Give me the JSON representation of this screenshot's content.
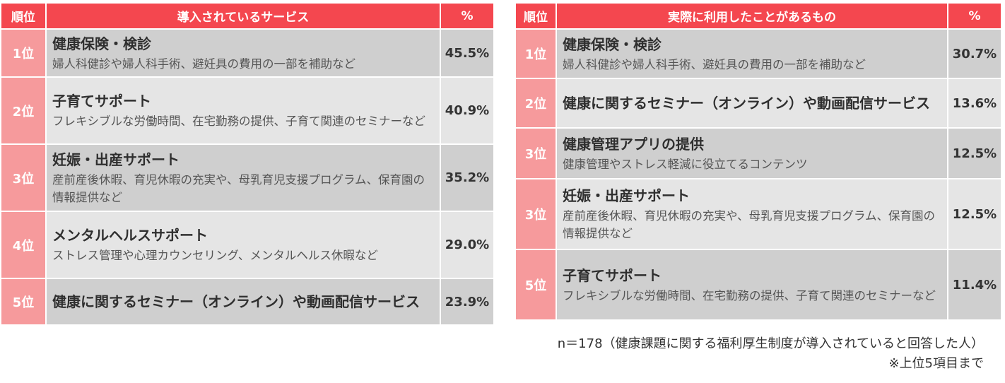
{
  "left_table": {
    "headers": {
      "rank": "順位",
      "item": "導入されているサービス",
      "pct": "%"
    },
    "rows": [
      {
        "rank": "1位",
        "title": "健康保険・検診",
        "desc": "婦人科健診や婦人科手術、避妊具の費用の一部を補助など",
        "pct": "45.5%"
      },
      {
        "rank": "2位",
        "title": "子育てサポート",
        "desc": "フレキシブルな労働時間、在宅勤務の提供、子育て関連のセミナーなど",
        "pct": "40.9%"
      },
      {
        "rank": "3位",
        "title": "妊娠・出産サポート",
        "desc": "産前産後休暇、育児休暇の充実や、母乳育児支援プログラム、保育園の情報提供など",
        "pct": "35.2%"
      },
      {
        "rank": "4位",
        "title": "メンタルヘルスサポート",
        "desc": "ストレス管理や心理カウンセリング、メンタルヘルス休暇など",
        "pct": "29.0%"
      },
      {
        "rank": "5位",
        "title": "健康に関するセミナー（オンライン）や動画配信サービス",
        "desc": "",
        "pct": "23.9%"
      }
    ]
  },
  "right_table": {
    "headers": {
      "rank": "順位",
      "item": "実際に利用したことがあるもの",
      "pct": "%"
    },
    "rows": [
      {
        "rank": "1位",
        "title": "健康保険・検診",
        "desc": "婦人科健診や婦人科手術、避妊具の費用の一部を補助など",
        "pct": "30.7%"
      },
      {
        "rank": "2位",
        "title": "健康に関するセミナー（オンライン）や動画配信サービス",
        "desc": "",
        "pct": "13.6%"
      },
      {
        "rank": "3位",
        "title": "健康管理アプリの提供",
        "desc": "健康管理やストレス軽減に役立てるコンテンツ",
        "pct": "12.5%"
      },
      {
        "rank": "3位",
        "title": "妊娠・出産サポート",
        "desc": "産前産後休暇、育児休暇の充実や、母乳育児支援プログラム、保育園の情報提供など",
        "pct": "12.5%"
      },
      {
        "rank": "5位",
        "title": "子育てサポート",
        "desc": "フレキシブルな労働時間、在宅勤務の提供、子育て関連のセミナーなど",
        "pct": "11.4%"
      }
    ]
  },
  "notes": {
    "sample": "n＝178（健康課題に関する福利厚生制度が導入されていると回答した人）",
    "scope": "※上位5項目まで"
  }
}
